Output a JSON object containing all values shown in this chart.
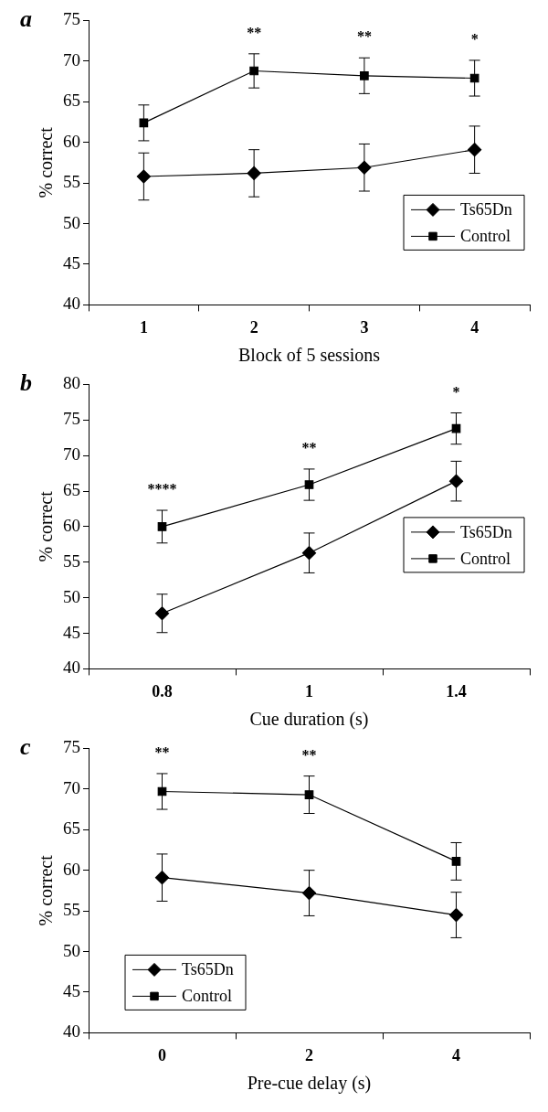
{
  "chart_data": [
    {
      "type": "line",
      "title": "a",
      "xlabel": "Block of 5 sessions",
      "ylabel": "% correct",
      "categories": [
        "1",
        "2",
        "3",
        "4"
      ],
      "ylim": [
        40,
        75
      ],
      "yticks": [
        40,
        45,
        50,
        55,
        60,
        65,
        70,
        75
      ],
      "legend": "bottom right",
      "grid": false,
      "series": [
        {
          "name": "Ts65Dn",
          "color": "#000000",
          "marker": "diamond",
          "values": [
            55.8,
            56.2,
            56.9,
            59.1
          ],
          "errors": [
            2.9,
            2.9,
            2.9,
            2.9
          ]
        },
        {
          "name": "Control",
          "color": "#000000",
          "marker": "square",
          "values": [
            62.4,
            68.8,
            68.2,
            67.9
          ],
          "errors": [
            2.2,
            2.1,
            2.2,
            2.2
          ]
        }
      ],
      "annotations": [
        "**",
        "**",
        "*"
      ]
    },
    {
      "type": "line",
      "title": "b",
      "xlabel": "Cue duration (s)",
      "ylabel": "% correct",
      "categories": [
        "0.8",
        "1",
        "1.4"
      ],
      "ylim": [
        40,
        80
      ],
      "yticks": [
        40,
        45,
        50,
        55,
        60,
        65,
        70,
        75,
        80
      ],
      "legend": "right",
      "grid": false,
      "series": [
        {
          "name": "Ts65Dn",
          "color": "#000000",
          "marker": "diamond",
          "values": [
            47.8,
            56.3,
            66.4
          ],
          "errors": [
            2.7,
            2.8,
            2.8
          ]
        },
        {
          "name": "Control",
          "color": "#000000",
          "marker": "square",
          "values": [
            60.0,
            65.9,
            73.8
          ],
          "errors": [
            2.3,
            2.2,
            2.2
          ]
        }
      ],
      "annotations": [
        "****",
        "**",
        "*"
      ]
    },
    {
      "type": "line",
      "title": "c",
      "xlabel": "Pre-cue delay (s)",
      "ylabel": "% correct",
      "categories": [
        "0",
        "2",
        "4"
      ],
      "ylim": [
        40,
        75
      ],
      "yticks": [
        40,
        45,
        50,
        55,
        60,
        65,
        70,
        75
      ],
      "legend": "bottom left",
      "grid": false,
      "series": [
        {
          "name": "Ts65Dn",
          "color": "#000000",
          "marker": "diamond",
          "values": [
            59.1,
            57.2,
            54.5
          ],
          "errors": [
            2.9,
            2.8,
            2.8
          ]
        },
        {
          "name": "Control",
          "color": "#000000",
          "marker": "square",
          "values": [
            69.7,
            69.3,
            61.1
          ],
          "errors": [
            2.2,
            2.3,
            2.3
          ]
        }
      ],
      "annotations": [
        "**",
        "**"
      ]
    }
  ]
}
